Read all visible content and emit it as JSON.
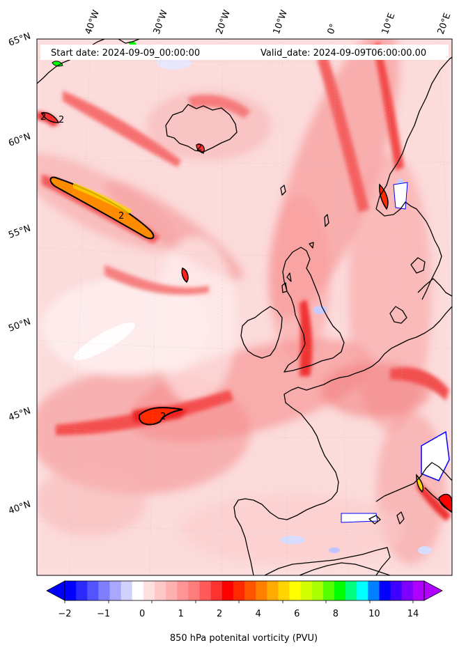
{
  "header": {
    "start_date": "Start date: 2024-09-09_00:00:00",
    "valid_date": "Valid_date: 2024-09-09T06:00:00.00"
  },
  "map": {
    "longitude_labels": [
      "40°W",
      "30°W",
      "20°W",
      "10°W",
      "0°",
      "10°E",
      "20°E"
    ],
    "latitude_labels": [
      "65°N",
      "60°N",
      "55°N",
      "50°N",
      "45°N",
      "40°N"
    ],
    "contour_labels": [
      "2",
      "2",
      "2",
      "2",
      "2"
    ],
    "colors": {
      "background_pv": "#fde0e0",
      "land_outline": "#000000",
      "contour_line": "#000000"
    }
  },
  "colorbar": {
    "title": "850 hPa potenital vorticity (PVU)",
    "tick_labels": [
      "−2",
      "−1",
      "0",
      "1",
      "2",
      "4",
      "6",
      "8",
      "10",
      "14"
    ],
    "colors": [
      "#0000ff",
      "#2a2aff",
      "#5454ff",
      "#7e7eff",
      "#a8a8ff",
      "#d2d2ff",
      "#ffffff",
      "#ffe0e0",
      "#ffc8c8",
      "#ffb0b0",
      "#ff9696",
      "#ff7c7c",
      "#ff5a5a",
      "#ff3232",
      "#ff0000",
      "#ff2a00",
      "#ff5500",
      "#ff8000",
      "#ffaa00",
      "#ffd400",
      "#ffff00",
      "#d4ff00",
      "#aaff00",
      "#55ff00",
      "#00ff00",
      "#00ff80",
      "#00ffff",
      "#0080ff",
      "#0000ff",
      "#4000ff",
      "#8000ff",
      "#b000ff"
    ],
    "min_color": "#0000ff",
    "max_color": "#b000ff"
  }
}
